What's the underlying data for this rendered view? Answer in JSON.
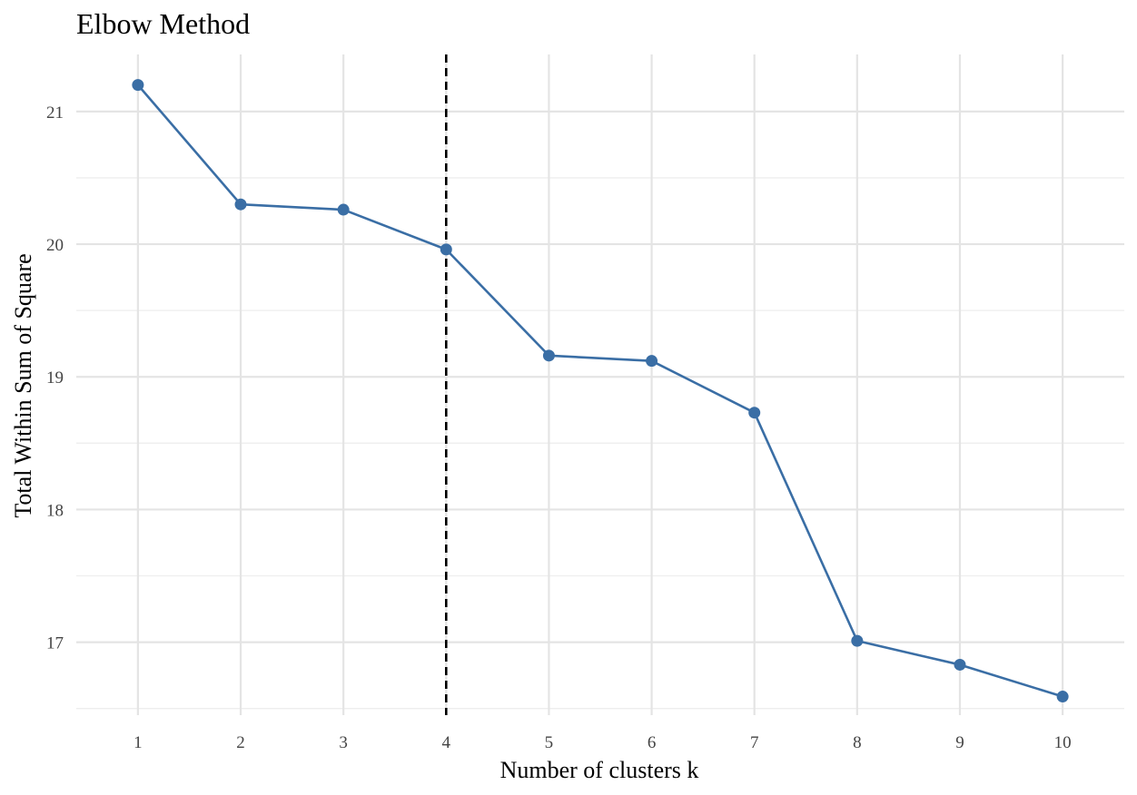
{
  "chart_data": {
    "type": "line",
    "title": "Elbow Method",
    "xlabel": "Number of clusters k",
    "ylabel": "Total Within Sum of Square",
    "x": [
      1,
      2,
      3,
      4,
      5,
      6,
      7,
      8,
      9,
      10
    ],
    "series": [
      {
        "values": [
          21.2,
          20.3,
          20.26,
          19.96,
          19.16,
          19.12,
          18.73,
          17.01,
          16.83,
          16.59
        ],
        "color": "#3a6ea5"
      }
    ],
    "xlim": [
      0.4,
      10.6
    ],
    "ylim": [
      16.45,
      21.43
    ],
    "xticks": [
      1,
      2,
      3,
      4,
      5,
      6,
      7,
      8,
      9,
      10
    ],
    "yticks": [
      17,
      18,
      19,
      20,
      21
    ],
    "annotations": [
      {
        "type": "vline",
        "x": 4,
        "style": "dashed",
        "color": "#000000"
      }
    ],
    "grid": true,
    "legend": "none"
  }
}
